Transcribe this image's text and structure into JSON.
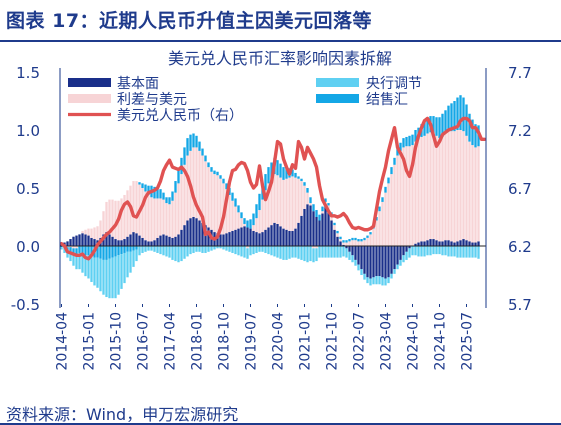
{
  "header": {
    "title": "图表 17：近期人民币升值主因美元回落等"
  },
  "source": "资料来源：Wind，申万宏源研究",
  "colors": {
    "title": "#1f3b8c",
    "basic": "#1a2f8a",
    "interest_diff": "#f7d4d6",
    "central_parity": "#5fd0f2",
    "sales_fx": "#14a7e6",
    "usdcny": "#e05252",
    "axis": "#1a3a8a"
  },
  "chart_data": {
    "type": "bar",
    "title": "美元兑人民币汇率影响因素拆解",
    "legend": {
      "placement": "top",
      "left": [
        "基本面",
        "利差与美元",
        "美元兑人民币（右）"
      ],
      "right": [
        "央行调节",
        "结售汇"
      ]
    },
    "y_left": {
      "min": -0.5,
      "max": 1.5,
      "ticks": [
        "1.5",
        "1.0",
        "0.5",
        "0.0",
        "-0.5"
      ]
    },
    "y_right": {
      "min": 5.7,
      "max": 7.7,
      "ticks": [
        "7.7",
        "7.2",
        "6.7",
        "6.2",
        "5.7"
      ]
    },
    "x_ticks": [
      "2014-04",
      "2015-01",
      "2015-10",
      "2016-07",
      "2017-04",
      "2018-01",
      "2018-10",
      "2019-07",
      "2020-04",
      "2021-01",
      "2021-10",
      "2022-07",
      "2023-04",
      "2024-01",
      "2024-10",
      "2025-07"
    ],
    "x_start": "2014-04",
    "x_end": "2025-09",
    "series": [
      {
        "name": "基本面",
        "stack": "components",
        "values": [
          0.02,
          0.03,
          0.04,
          0.06,
          0.08,
          0.09,
          0.1,
          0.11,
          0.1,
          0.09,
          0.07,
          0.06,
          0.05,
          0.07,
          0.1,
          0.12,
          0.1,
          0.08,
          0.06,
          0.05,
          0.05,
          0.06,
          0.08,
          0.1,
          0.12,
          0.11,
          0.09,
          0.07,
          0.05,
          0.04,
          0.04,
          0.05,
          0.07,
          0.09,
          0.1,
          0.09,
          0.08,
          0.07,
          0.08,
          0.1,
          0.14,
          0.18,
          0.22,
          0.24,
          0.25,
          0.24,
          0.22,
          0.2,
          0.18,
          0.16,
          0.14,
          0.12,
          0.11,
          0.1,
          0.1,
          0.11,
          0.12,
          0.13,
          0.14,
          0.15,
          0.16,
          0.17,
          0.16,
          0.15,
          0.13,
          0.12,
          0.11,
          0.12,
          0.14,
          0.16,
          0.18,
          0.2,
          0.19,
          0.17,
          0.15,
          0.14,
          0.13,
          0.13,
          0.15,
          0.2,
          0.26,
          0.32,
          0.36,
          0.35,
          0.3,
          0.25,
          0.22,
          0.28,
          0.34,
          0.3,
          0.22,
          0.14,
          0.08,
          0.04,
          0.01,
          -0.02,
          -0.05,
          -0.08,
          -0.12,
          -0.16,
          -0.2,
          -0.24,
          -0.27,
          -0.28,
          -0.27,
          -0.26,
          -0.26,
          -0.27,
          -0.28,
          -0.27,
          -0.24,
          -0.2,
          -0.16,
          -0.12,
          -0.08,
          -0.05,
          -0.02,
          0.0,
          0.02,
          0.03,
          0.04,
          0.04,
          0.05,
          0.06,
          0.06,
          0.05,
          0.04,
          0.04,
          0.05,
          0.05,
          0.04,
          0.03,
          0.04,
          0.05,
          0.06,
          0.05,
          0.04,
          0.03,
          0.03,
          0.04
        ]
      },
      {
        "name": "利差与美元",
        "stack": "components",
        "values": [
          0.0,
          0.0,
          -0.01,
          -0.01,
          -0.02,
          -0.02,
          0.0,
          0.02,
          0.04,
          0.06,
          0.08,
          0.1,
          0.12,
          0.15,
          0.2,
          0.26,
          0.3,
          0.32,
          0.33,
          0.34,
          0.36,
          0.38,
          0.4,
          0.42,
          0.44,
          0.45,
          0.44,
          0.43,
          0.42,
          0.4,
          0.38,
          0.36,
          0.34,
          0.32,
          0.3,
          0.28,
          0.28,
          0.32,
          0.38,
          0.44,
          0.48,
          0.52,
          0.56,
          0.58,
          0.6,
          0.61,
          0.6,
          0.58,
          0.55,
          0.52,
          0.5,
          0.5,
          0.5,
          0.48,
          0.44,
          0.38,
          0.32,
          0.26,
          0.2,
          0.14,
          0.08,
          0.02,
          -0.02,
          0.0,
          0.05,
          0.12,
          0.2,
          0.28,
          0.34,
          0.38,
          0.4,
          0.42,
          0.42,
          0.42,
          0.42,
          0.44,
          0.46,
          0.47,
          0.44,
          0.38,
          0.3,
          0.2,
          0.1,
          0.02,
          -0.02,
          -0.02,
          0.0,
          0.02,
          0.04,
          0.05,
          0.05,
          0.04,
          0.03,
          0.02,
          0.02,
          0.03,
          0.04,
          0.05,
          0.05,
          0.04,
          0.04,
          0.05,
          0.07,
          0.1,
          0.15,
          0.22,
          0.3,
          0.38,
          0.46,
          0.54,
          0.62,
          0.7,
          0.78,
          0.82,
          0.85,
          0.86,
          0.86,
          0.87,
          0.88,
          0.89,
          0.9,
          0.91,
          0.92,
          0.92,
          0.91,
          0.9,
          0.89,
          0.9,
          0.92,
          0.94,
          0.95,
          0.96,
          0.96,
          0.95,
          0.93,
          0.9,
          0.86,
          0.84,
          0.82,
          0.82
        ]
      },
      {
        "name": "央行调节",
        "stack": "components",
        "values": [
          -0.02,
          -0.04,
          -0.06,
          -0.08,
          -0.1,
          -0.12,
          -0.14,
          -0.16,
          -0.18,
          -0.2,
          -0.22,
          -0.24,
          -0.26,
          -0.28,
          -0.3,
          -0.32,
          -0.34,
          -0.35,
          -0.36,
          -0.34,
          -0.3,
          -0.26,
          -0.22,
          -0.18,
          -0.14,
          -0.1,
          -0.08,
          -0.06,
          -0.05,
          -0.04,
          -0.04,
          -0.05,
          -0.06,
          -0.07,
          -0.08,
          -0.09,
          -0.1,
          -0.12,
          -0.13,
          -0.14,
          -0.13,
          -0.11,
          -0.09,
          -0.07,
          -0.06,
          -0.05,
          -0.05,
          -0.06,
          -0.06,
          -0.05,
          -0.04,
          -0.03,
          -0.02,
          -0.02,
          -0.03,
          -0.04,
          -0.05,
          -0.06,
          -0.07,
          -0.08,
          -0.09,
          -0.1,
          -0.09,
          -0.08,
          -0.07,
          -0.06,
          -0.05,
          -0.05,
          -0.06,
          -0.07,
          -0.08,
          -0.09,
          -0.1,
          -0.11,
          -0.12,
          -0.12,
          -0.11,
          -0.1,
          -0.1,
          -0.11,
          -0.12,
          -0.13,
          -0.14,
          -0.13,
          -0.12,
          -0.11,
          -0.1,
          -0.1,
          -0.1,
          -0.1,
          -0.1,
          -0.1,
          -0.1,
          -0.1,
          -0.09,
          -0.08,
          -0.07,
          -0.06,
          -0.05,
          -0.05,
          -0.05,
          -0.05,
          -0.05,
          -0.06,
          -0.06,
          -0.07,
          -0.07,
          -0.07,
          -0.06,
          -0.05,
          -0.04,
          -0.04,
          -0.04,
          -0.05,
          -0.06,
          -0.07,
          -0.08,
          -0.08,
          -0.08,
          -0.09,
          -0.09,
          -0.09,
          -0.08,
          -0.08,
          -0.07,
          -0.07,
          -0.07,
          -0.08,
          -0.08,
          -0.09,
          -0.09,
          -0.09,
          -0.1,
          -0.1,
          -0.1,
          -0.1,
          -0.1,
          -0.1,
          -0.1,
          -0.11
        ]
      },
      {
        "name": "结售汇",
        "stack": "components",
        "values": [
          -0.01,
          -0.02,
          -0.03,
          -0.04,
          -0.05,
          -0.06,
          -0.06,
          -0.07,
          -0.08,
          -0.08,
          -0.09,
          -0.1,
          -0.1,
          -0.11,
          -0.12,
          -0.12,
          -0.11,
          -0.1,
          -0.09,
          -0.08,
          -0.07,
          -0.06,
          -0.05,
          -0.05,
          -0.04,
          -0.03,
          0.02,
          0.04,
          0.06,
          0.08,
          0.1,
          0.1,
          0.09,
          0.08,
          0.06,
          0.05,
          0.06,
          0.08,
          0.1,
          0.12,
          0.14,
          0.15,
          0.15,
          0.14,
          0.12,
          0.1,
          0.08,
          0.06,
          0.05,
          0.04,
          0.04,
          0.03,
          0.03,
          0.03,
          0.04,
          0.05,
          0.06,
          0.07,
          0.07,
          0.06,
          0.05,
          0.05,
          0.06,
          0.08,
          0.1,
          0.12,
          0.14,
          0.14,
          0.14,
          0.14,
          0.14,
          0.14,
          0.13,
          0.12,
          0.11,
          0.1,
          0.08,
          0.06,
          0.04,
          0.02,
          0.02,
          0.03,
          0.04,
          0.05,
          0.06,
          0.06,
          0.05,
          0.04,
          0.03,
          0.02,
          0.02,
          0.02,
          0.02,
          0.02,
          0.02,
          0.02,
          0.02,
          0.02,
          0.02,
          0.02,
          0.02,
          0.02,
          0.02,
          0.02,
          0.03,
          0.03,
          0.04,
          0.04,
          0.05,
          0.05,
          0.06,
          0.06,
          0.07,
          0.07,
          0.08,
          0.08,
          0.09,
          0.09,
          0.1,
          0.1,
          0.11,
          0.12,
          0.13,
          0.14,
          0.15,
          0.16,
          0.18,
          0.2,
          0.2,
          0.22,
          0.24,
          0.26,
          0.28,
          0.3,
          0.29,
          0.27,
          0.24,
          0.22,
          0.2,
          0.18
        ]
      },
      {
        "name": "美元兑人民币（右）",
        "type": "line",
        "axis": "right",
        "values": [
          6.22,
          6.2,
          6.15,
          6.14,
          6.13,
          6.12,
          6.12,
          6.13,
          6.1,
          6.09,
          6.12,
          6.16,
          6.21,
          6.24,
          6.27,
          6.3,
          6.32,
          6.35,
          6.38,
          6.43,
          6.51,
          6.56,
          6.58,
          6.54,
          6.46,
          6.45,
          6.5,
          6.55,
          6.62,
          6.66,
          6.67,
          6.68,
          6.7,
          6.76,
          6.85,
          6.9,
          6.94,
          6.88,
          6.87,
          6.86,
          6.88,
          6.85,
          6.8,
          6.72,
          6.62,
          6.55,
          6.5,
          6.45,
          6.3,
          6.32,
          6.27,
          6.26,
          6.28,
          6.35,
          6.45,
          6.6,
          6.75,
          6.85,
          6.86,
          6.9,
          6.92,
          6.91,
          6.85,
          6.75,
          6.7,
          6.73,
          6.89,
          6.72,
          6.6,
          6.67,
          6.75,
          6.92,
          7.1,
          7.08,
          6.95,
          6.88,
          6.82,
          6.9,
          6.87,
          7.1,
          7.05,
          6.95,
          7.05,
          7.0,
          6.95,
          6.88,
          6.72,
          6.6,
          6.55,
          6.5,
          6.46,
          6.46,
          6.45,
          6.46,
          6.48,
          6.45,
          6.4,
          6.36,
          6.35,
          6.36,
          6.35,
          6.34,
          6.34,
          6.35,
          6.37,
          6.52,
          6.67,
          6.78,
          6.88,
          7.02,
          7.12,
          7.22,
          7.05,
          7.0,
          6.95,
          6.85,
          6.8,
          6.9,
          7.05,
          7.15,
          7.22,
          7.28,
          7.3,
          7.25,
          7.15,
          7.06,
          7.1,
          7.16,
          7.18,
          7.2,
          7.21,
          7.22,
          7.23,
          7.28,
          7.3,
          7.3,
          7.28,
          7.22,
          7.22,
          7.18,
          7.12,
          7.12
        ]
      }
    ]
  }
}
